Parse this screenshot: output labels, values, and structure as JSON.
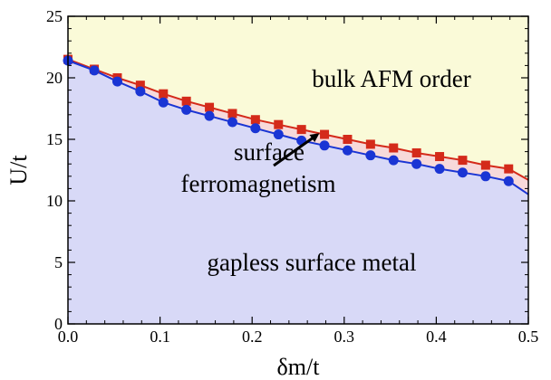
{
  "chart_data": {
    "type": "line",
    "xlabel": "δm/t",
    "ylabel": "U/t",
    "xlim": [
      0.0,
      0.5
    ],
    "ylim": [
      0,
      25
    ],
    "xticks": [
      "0.0",
      "0.1",
      "0.2",
      "0.3",
      "0.4",
      "0.5"
    ],
    "yticks": [
      "0",
      "5",
      "10",
      "15",
      "20",
      "25"
    ],
    "grid": false,
    "series": [
      {
        "marker": "square",
        "color": "#d42a1a",
        "x": [
          0.0,
          0.0286,
          0.0536,
          0.0786,
          0.1036,
          0.1286,
          0.1536,
          0.1786,
          0.2036,
          0.2286,
          0.2536,
          0.2786,
          0.3036,
          0.3286,
          0.3536,
          0.3786,
          0.4036,
          0.4286,
          0.4536,
          0.4786
        ],
        "values": [
          21.5,
          20.7,
          20.0,
          19.4,
          18.7,
          18.1,
          17.6,
          17.1,
          16.6,
          16.2,
          15.8,
          15.4,
          15.0,
          14.6,
          14.3,
          13.9,
          13.6,
          13.3,
          12.9,
          12.6
        ]
      },
      {
        "marker": "circle",
        "color": "#1a35d4",
        "x": [
          0.0,
          0.0286,
          0.0536,
          0.0786,
          0.1036,
          0.1286,
          0.1536,
          0.1786,
          0.2036,
          0.2286,
          0.2536,
          0.2786,
          0.3036,
          0.3286,
          0.3536,
          0.3786,
          0.4036,
          0.4286,
          0.4536,
          0.4786
        ],
        "values": [
          21.4,
          20.6,
          19.7,
          18.9,
          18.0,
          17.4,
          16.9,
          16.4,
          15.9,
          15.4,
          14.9,
          14.5,
          14.1,
          13.7,
          13.3,
          13.0,
          12.6,
          12.3,
          12.0,
          11.6
        ]
      }
    ],
    "regions": {
      "upper": {
        "label": "bulk AFM order",
        "color": "#fafad8"
      },
      "middle_line1": "surface",
      "middle_line2": "ferromagnetism",
      "middle_color": "#f7d9da",
      "lower": {
        "label": "gapless surface metal",
        "color": "#d8d9f7"
      }
    }
  }
}
